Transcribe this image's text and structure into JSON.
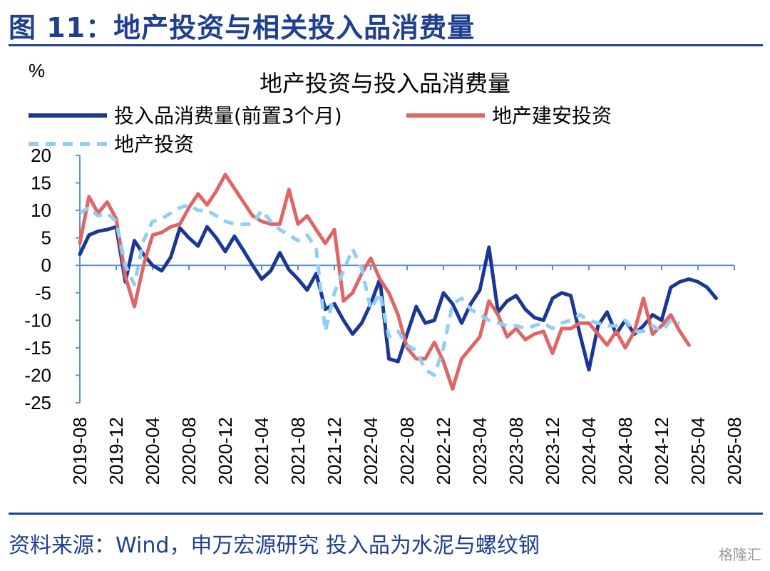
{
  "figure_title": "图 11：地产投资与相关投入品消费量",
  "source_note": "资料来源：Wind，申万宏源研究 投入品为水泥与螺纹钢",
  "watermark": "格隆汇",
  "colors": {
    "accent": "#1f3f8f",
    "series1": "#1a3796",
    "series2": "#e06666",
    "series3": "#8fd0f2"
  },
  "chart_data": {
    "type": "line",
    "title": "地产投资与投入品消费量",
    "ylabel": "%",
    "ylim": [
      -25,
      20
    ],
    "yticks": [
      20,
      15,
      10,
      5,
      0,
      -5,
      -10,
      -15,
      -20,
      -25
    ],
    "x_start": "2019-08",
    "x_tick_labels": [
      "2019-08",
      "2019-12",
      "2020-04",
      "2020-08",
      "2020-12",
      "2021-04",
      "2021-08",
      "2021-12",
      "2022-04",
      "2022-08",
      "2022-12",
      "2023-04",
      "2023-08",
      "2023-12",
      "2024-04",
      "2024-08",
      "2024-12",
      "2025-04",
      "2025-08"
    ],
    "legend_position": "top-left",
    "grid": false,
    "series": [
      {
        "name": "投入品消费量(前置3个月)",
        "style": "solid",
        "color": "#1a3796",
        "values": [
          2,
          5.5,
          6.2,
          6.5,
          7,
          -3,
          4.5,
          2,
          0,
          -1,
          1.5,
          6.8,
          5,
          3.5,
          7,
          5,
          2.5,
          5.3,
          2.7,
          0,
          -2.5,
          -1,
          2.3,
          -0.8,
          -2.5,
          -4.5,
          -1.5,
          -8,
          -7,
          -10,
          -12.5,
          -10.5,
          -7,
          -2.5,
          -17,
          -17.5,
          -12.5,
          -7.5,
          -10.5,
          -10,
          -5,
          -7,
          -10.5,
          -7,
          -4.5,
          3.3,
          -8.5,
          -6.5,
          -5.5,
          -8,
          -9.5,
          -10,
          -6,
          -5,
          -5.5,
          -12.5,
          -19,
          -11,
          -8.5,
          -12.5,
          -10,
          -12.5,
          -11,
          -9,
          -10,
          -4,
          -3,
          -2.5,
          -3,
          -4,
          -6
        ]
      },
      {
        "name": "地产建安投资",
        "style": "solid",
        "color": "#e06666",
        "values": [
          4,
          12.5,
          9.5,
          11.5,
          8.5,
          -2,
          -7.5,
          0,
          5.5,
          6,
          7,
          7.5,
          10.5,
          13,
          11,
          13.5,
          16.5,
          14,
          11.5,
          9,
          8,
          7.5,
          7.5,
          13.8,
          7.5,
          9,
          6.5,
          4,
          6.5,
          -6.5,
          -5,
          -1.5,
          1.3,
          -2.5,
          -5,
          -9,
          -15,
          -17,
          -17,
          -14,
          -17.5,
          -22.5,
          -17,
          -15,
          -13,
          -6.5,
          -9,
          -13,
          -11.5,
          -13.5,
          -12.5,
          -12,
          -16,
          -11.5,
          -11.5,
          -10.5,
          -10.5,
          -12.5,
          -14.5,
          -12,
          -15,
          -12,
          -6,
          -12.5,
          -11,
          -9,
          -12,
          -14.5
        ]
      },
      {
        "name": "地产投资",
        "style": "dashed",
        "color": "#8fd0f2",
        "values": [
          9.5,
          10.5,
          9,
          9.5,
          8,
          0,
          -3.5,
          4.5,
          8,
          8.5,
          9.5,
          10.5,
          11,
          10,
          10,
          9,
          8,
          7.5,
          7.5,
          7.5,
          10,
          8,
          6.5,
          5.5,
          4.5,
          5.5,
          3,
          -12,
          -5,
          -1,
          3,
          -0.5,
          -8,
          -5,
          -13,
          -12,
          -14.5,
          -15.5,
          -19,
          -20,
          -15,
          -7,
          -6,
          -8,
          -9,
          -10,
          -10.5,
          -11,
          -11,
          -11.5,
          -11,
          -10.5,
          -11.5,
          -10.5,
          -10,
          -9,
          -10,
          -10.5,
          -11,
          -11,
          -10,
          -12,
          -12,
          -11,
          -12,
          -10,
          -10.5
        ]
      }
    ]
  }
}
